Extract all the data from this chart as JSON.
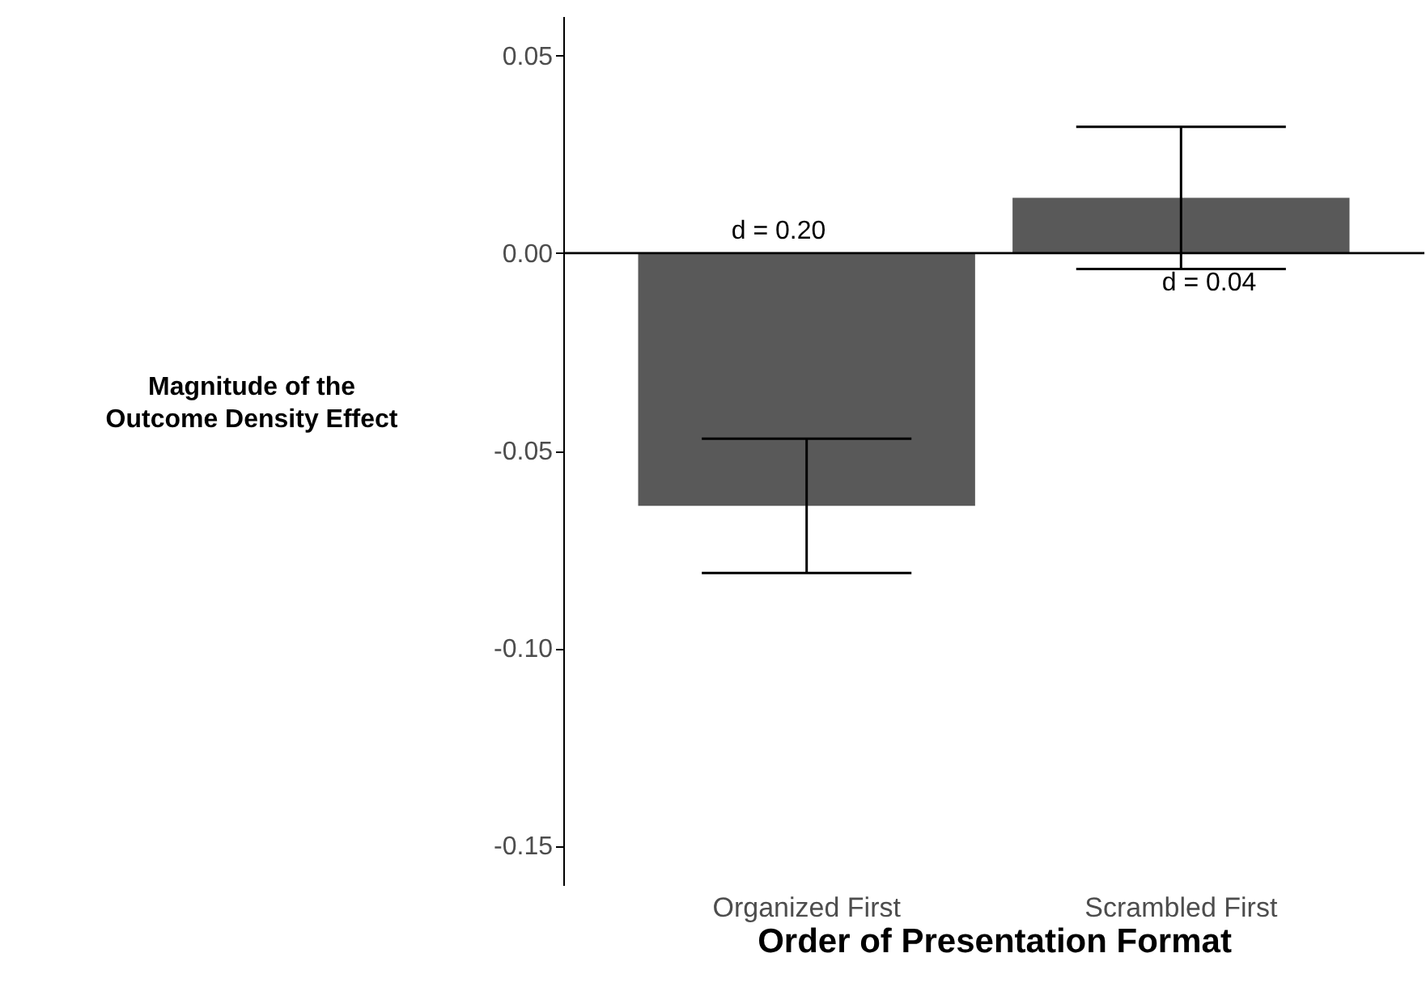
{
  "chart_data": {
    "type": "bar",
    "categories": [
      "Organized First",
      "Scrambled First"
    ],
    "values": [
      -0.064,
      0.014
    ],
    "errors": [
      0.017,
      0.018
    ],
    "color": "#595959",
    "xlabel": "Order of Presentation Format",
    "ylabel": "Magnitude of the\nOutcome Density Effect",
    "ylim": [
      -0.16,
      0.06
    ],
    "yticks": [
      {
        "value": -0.15,
        "label": "-0.15"
      },
      {
        "value": -0.1,
        "label": "-0.10"
      },
      {
        "value": -0.05,
        "label": "-0.05"
      },
      {
        "value": 0,
        "label": "0.00"
      },
      {
        "value": 0.05,
        "label": "0.05"
      }
    ],
    "ref_lines": [
      {
        "axis": "y",
        "value": 0,
        "color": "#000000"
      }
    ],
    "annotations": [
      "d = 0.20",
      "d = 0.04"
    ],
    "grid": false
  }
}
